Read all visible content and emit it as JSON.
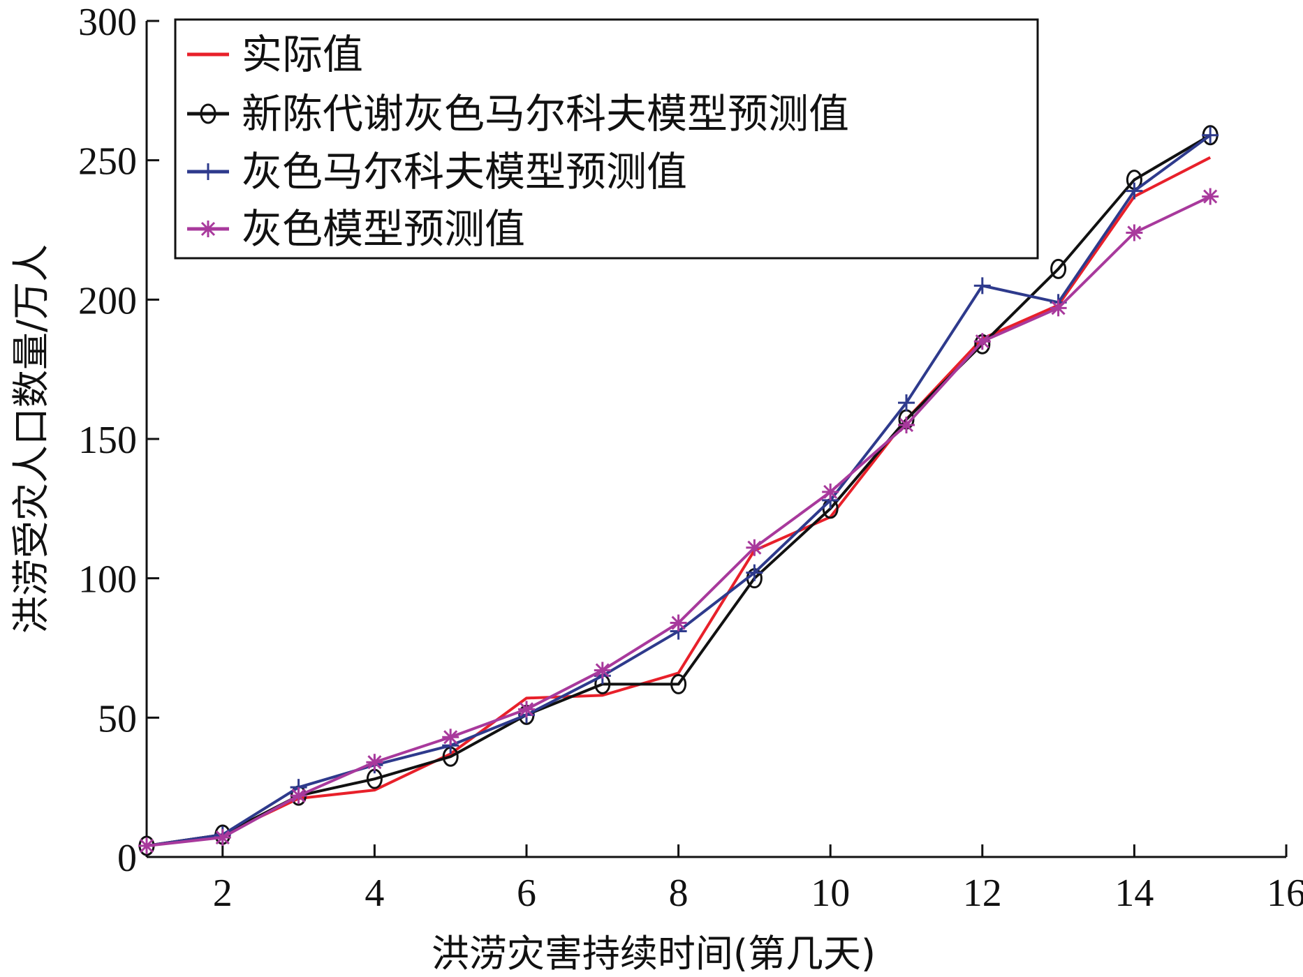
{
  "chart_data": {
    "type": "line",
    "title": "",
    "xlabel": "洪涝灾害持续时间(第几天)",
    "ylabel": "洪涝受灾人口数量/万人",
    "xlim": [
      1,
      16
    ],
    "ylim": [
      0,
      300
    ],
    "xticks": [
      2,
      4,
      6,
      8,
      10,
      12,
      14,
      16
    ],
    "yticks": [
      0,
      50,
      100,
      150,
      200,
      250,
      300
    ],
    "grid": false,
    "legend_position": "top-left",
    "x": [
      1,
      2,
      3,
      4,
      5,
      6,
      7,
      8,
      9,
      10,
      11,
      12,
      13,
      14,
      15
    ],
    "series": [
      {
        "name": "实际值",
        "color": "#e8202a",
        "marker": "none",
        "values": [
          4,
          8,
          21,
          24,
          37,
          57,
          58,
          66,
          110,
          122,
          157,
          186,
          198,
          237,
          251
        ]
      },
      {
        "name": "新陈代谢灰色马尔科夫模型预测值",
        "color": "#111111",
        "marker": "circle",
        "values": [
          4,
          8,
          22,
          28,
          36,
          51,
          62,
          62,
          100,
          125,
          157,
          184,
          211,
          243,
          259
        ]
      },
      {
        "name": "灰色马尔科夫模型预测值",
        "color": "#2e3a8c",
        "marker": "plus",
        "values": [
          4,
          8,
          25,
          33,
          40,
          51,
          65,
          81,
          102,
          128,
          163,
          205,
          199,
          239,
          259
        ]
      },
      {
        "name": "灰色模型预测值",
        "color": "#a8399c",
        "marker": "asterisk",
        "values": [
          4,
          7,
          22,
          34,
          43,
          53,
          67,
          84,
          111,
          131,
          155,
          185,
          197,
          224,
          237
        ]
      }
    ]
  }
}
